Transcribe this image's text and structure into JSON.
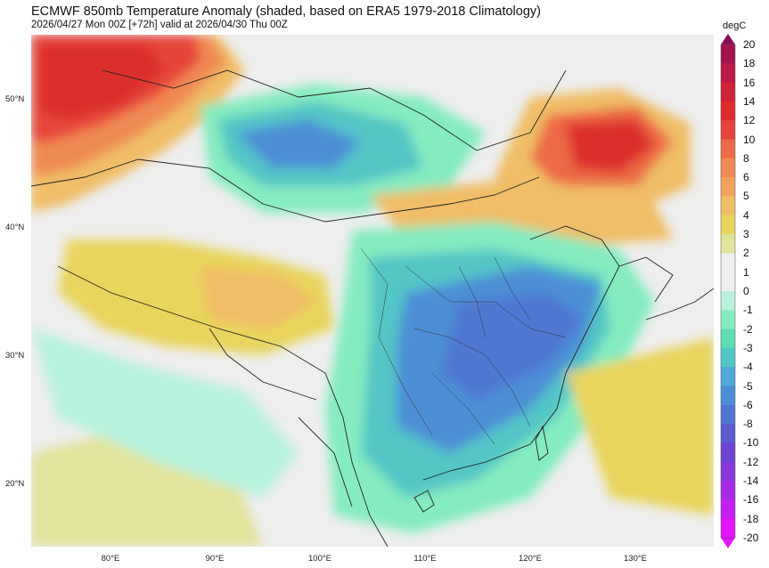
{
  "header": {
    "title": "ECMWF 850mb Temperature Anomaly (shaded, based on ERA5 1979-2018 Climatology)",
    "subtitle": "2026/04/27 Mon 00Z [+72h] valid at 2026/04/30 Thu 00Z"
  },
  "map": {
    "lat_labels": [
      "50°N",
      "40°N",
      "30°N",
      "20°N"
    ],
    "lon_labels": [
      "80°E",
      "90°E",
      "100°E",
      "110°E",
      "120°E",
      "130°E"
    ]
  },
  "colorbar": {
    "unit": "degC",
    "levels": [
      "20",
      "18",
      "16",
      "14",
      "12",
      "10",
      "8",
      "6",
      "5",
      "4",
      "3",
      "2",
      "1",
      "0",
      "-1",
      "-2",
      "-3",
      "-4",
      "-5",
      "-6",
      "-8",
      "-10",
      "-12",
      "-14",
      "-16",
      "-18",
      "-20"
    ],
    "colors": [
      "#8a0a5a",
      "#a3124f",
      "#bb1a45",
      "#cf2337",
      "#dd2d2d",
      "#e6443a",
      "#ec6a45",
      "#f08a52",
      "#f0a35c",
      "#efbe66",
      "#e9d45d",
      "#e2e39c",
      "#eeeeee",
      "#eeeeee",
      "#b8f2dd",
      "#85ecc0",
      "#5fdcb1",
      "#52c6c6",
      "#50a8d8",
      "#4d8fd6",
      "#4f76d2",
      "#5a5ccf",
      "#6e45d0",
      "#8a37dc",
      "#a52be6",
      "#c51ef0",
      "#e214fb"
    ]
  }
}
